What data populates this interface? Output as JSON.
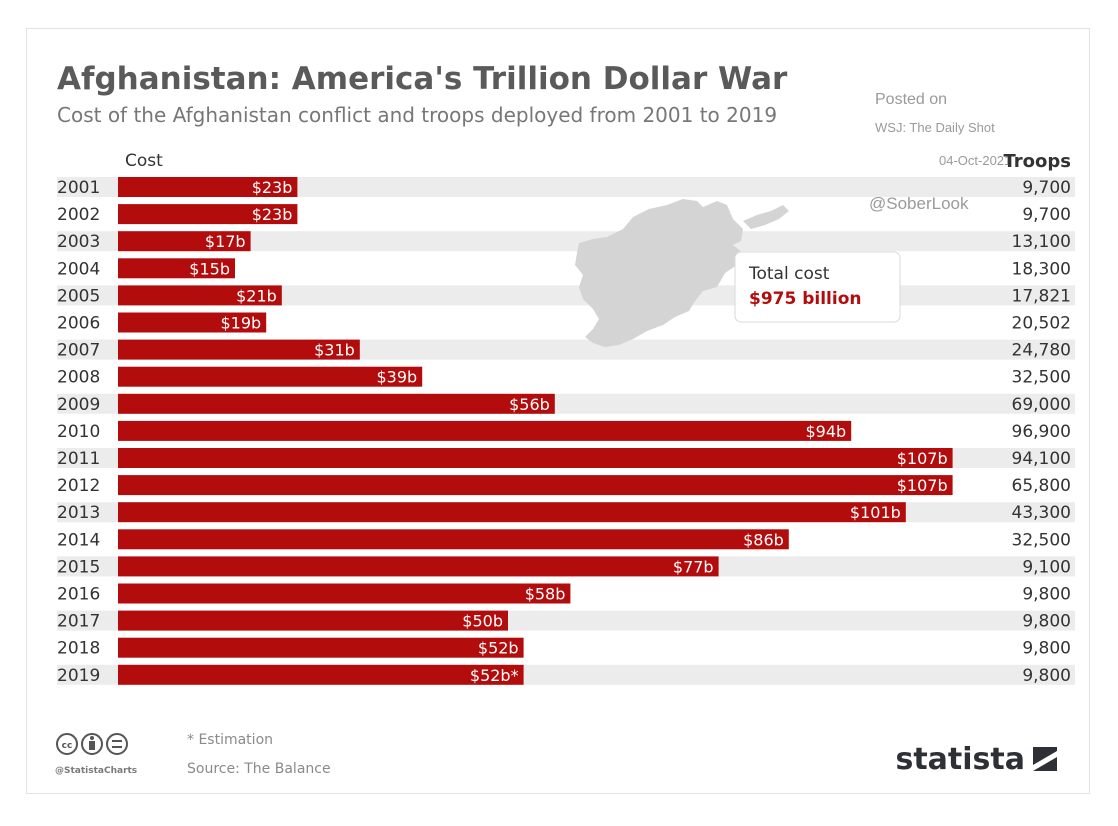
{
  "chart_data": {
    "type": "bar",
    "orientation": "horizontal",
    "title": "Afghanistan: America's Trillion Dollar War",
    "subtitle": "Cost of the Afghanistan conflict and troops deployed from 2001 to 2019",
    "cost_header": "Cost",
    "troops_header": "Troops",
    "categories": [
      "2001",
      "2002",
      "2003",
      "2004",
      "2005",
      "2006",
      "2007",
      "2008",
      "2009",
      "2010",
      "2011",
      "2012",
      "2013",
      "2014",
      "2015",
      "2016",
      "2017",
      "2018",
      "2019"
    ],
    "values": [
      23,
      23,
      17,
      15,
      21,
      19,
      31,
      39,
      56,
      94,
      107,
      107,
      101,
      86,
      77,
      58,
      50,
      52,
      52
    ],
    "value_labels": [
      "$23b",
      "$23b",
      "$17b",
      "$15b",
      "$21b",
      "$19b",
      "$31b",
      "$39b",
      "$56b",
      "$94b",
      "$107b",
      "$107b",
      "$101b",
      "$86b",
      "$77b",
      "$58b",
      "$50b",
      "$52b",
      "$52b*"
    ],
    "troops": [
      "9,700",
      "9,700",
      "13,100",
      "18,300",
      "17,821",
      "20,502",
      "24,780",
      "32,500",
      "69,000",
      "96,900",
      "94,100",
      "65,800",
      "43,300",
      "32,500",
      "9,100",
      "9,800",
      "9,800",
      "9,800",
      "9,800"
    ],
    "callout": {
      "label": "Total cost",
      "value": "$975 billion"
    },
    "bar_color": "#b30c0c",
    "stripe_color": "#ececec"
  },
  "watermark": {
    "line1": "Posted on",
    "line2": "WSJ: The Daily Shot",
    "line3": "04-Oct-2021",
    "handle": "@SoberLook"
  },
  "footer": {
    "note": "* Estimation",
    "source": "Source: The Balance",
    "handle": "@StatistaCharts",
    "brand": "statista",
    "license_icons": [
      "cc-icon",
      "attribution-icon",
      "no-derivatives-icon"
    ]
  }
}
